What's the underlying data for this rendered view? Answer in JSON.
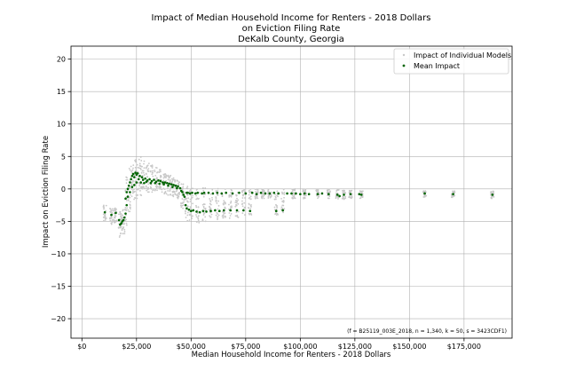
{
  "chart_data": {
    "type": "scatter",
    "title": [
      "Impact of Median Household Income for Renters - 2018 Dollars",
      "on Eviction Filing Rate",
      "DeKalb County, Georgia"
    ],
    "xlabel": "Median Household Income for Renters - 2018 Dollars",
    "ylabel": "Impact on Eviction Filing Rate",
    "xlim": [
      -5000,
      197000
    ],
    "ylim": [
      -23,
      22
    ],
    "xticks": [
      0,
      25000,
      50000,
      75000,
      100000,
      125000,
      150000,
      175000
    ],
    "xtick_labels": [
      "$0",
      "$25,000",
      "$50,000",
      "$75,000",
      "$100,000",
      "$125,000",
      "$150,000",
      "$175,000"
    ],
    "yticks": [
      -20,
      -15,
      -10,
      -5,
      0,
      5,
      10,
      15,
      20
    ],
    "ytick_labels": [
      "−20",
      "−15",
      "−10",
      "−5",
      "0",
      "5",
      "10",
      "15",
      "20"
    ],
    "grid": true,
    "legend": {
      "placement": "top-right",
      "entries": [
        "Impact of Individual Models",
        "Mean Impact"
      ]
    },
    "annotation": "(f = B25119_003E_2018, n = 1,340, k = 50, s = 3423CDF1)",
    "series": [
      {
        "name": "Impact of Individual Models",
        "style": "individual",
        "color": "#c8c8c8",
        "bands": [
          {
            "x": 10500,
            "lo": -5.0,
            "hi": -2.5
          },
          {
            "x": 13500,
            "lo": -5.5,
            "hi": -3.0
          },
          {
            "x": 15500,
            "lo": -5.2,
            "hi": -2.8
          },
          {
            "x": 17500,
            "lo": -7.5,
            "hi": -3.5
          },
          {
            "x": 19000,
            "lo": -7.0,
            "hi": -3.0
          },
          {
            "x": 20500,
            "lo": -6.0,
            "hi": 2.0
          },
          {
            "x": 22000,
            "lo": -3.5,
            "hi": 3.5
          },
          {
            "x": 23500,
            "lo": -2.0,
            "hi": 4.0
          },
          {
            "x": 25000,
            "lo": -1.5,
            "hi": 4.5
          },
          {
            "x": 26500,
            "lo": -1.0,
            "hi": 5.0
          },
          {
            "x": 28000,
            "lo": -0.5,
            "hi": 4.5
          },
          {
            "x": 30000,
            "lo": -0.5,
            "hi": 4.0
          },
          {
            "x": 32000,
            "lo": -0.5,
            "hi": 3.8
          },
          {
            "x": 34000,
            "lo": -0.3,
            "hi": 3.5
          },
          {
            "x": 36000,
            "lo": -0.5,
            "hi": 3.0
          },
          {
            "x": 38000,
            "lo": -0.8,
            "hi": 2.5
          },
          {
            "x": 40000,
            "lo": -1.0,
            "hi": 2.2
          },
          {
            "x": 42000,
            "lo": -1.2,
            "hi": 2.0
          },
          {
            "x": 44000,
            "lo": -1.5,
            "hi": 1.8
          },
          {
            "x": 46000,
            "lo": -3.0,
            "hi": 1.0
          },
          {
            "x": 48000,
            "lo": -5.0,
            "hi": 0.5
          },
          {
            "x": 50000,
            "lo": -5.0,
            "hi": 0.3
          },
          {
            "x": 53000,
            "lo": -5.2,
            "hi": 0.2
          },
          {
            "x": 56000,
            "lo": -5.0,
            "hi": 0.2
          },
          {
            "x": 59000,
            "lo": -5.0,
            "hi": 0.2
          },
          {
            "x": 62000,
            "lo": -4.8,
            "hi": 0.1
          },
          {
            "x": 65000,
            "lo": -4.5,
            "hi": 0.1
          },
          {
            "x": 68000,
            "lo": -4.5,
            "hi": 0.0
          },
          {
            "x": 71000,
            "lo": -4.5,
            "hi": 0.0
          },
          {
            "x": 74000,
            "lo": -4.0,
            "hi": 0.0
          },
          {
            "x": 77000,
            "lo": -4.2,
            "hi": 0.0
          },
          {
            "x": 80000,
            "lo": -1.5,
            "hi": 0.0
          },
          {
            "x": 83000,
            "lo": -1.5,
            "hi": 0.0
          },
          {
            "x": 86000,
            "lo": -1.4,
            "hi": 0.0
          },
          {
            "x": 89000,
            "lo": -4.0,
            "hi": 0.0
          },
          {
            "x": 92000,
            "lo": -4.0,
            "hi": 0.0
          },
          {
            "x": 97000,
            "lo": -1.5,
            "hi": 0.0
          },
          {
            "x": 102000,
            "lo": -1.5,
            "hi": 0.0
          },
          {
            "x": 108000,
            "lo": -1.5,
            "hi": -0.1
          },
          {
            "x": 113000,
            "lo": -1.5,
            "hi": -0.1
          },
          {
            "x": 117000,
            "lo": -1.6,
            "hi": -0.1
          },
          {
            "x": 120000,
            "lo": -1.6,
            "hi": -0.2
          },
          {
            "x": 123000,
            "lo": -1.5,
            "hi": -0.2
          },
          {
            "x": 128000,
            "lo": -1.5,
            "hi": -0.2
          },
          {
            "x": 157000,
            "lo": -1.3,
            "hi": -0.3
          },
          {
            "x": 170000,
            "lo": -1.3,
            "hi": -0.3
          },
          {
            "x": 188000,
            "lo": -1.5,
            "hi": -0.3
          }
        ]
      },
      {
        "name": "Mean Impact",
        "style": "mean",
        "color": "#006400",
        "points": [
          [
            10500,
            -3.6
          ],
          [
            13500,
            -4.0
          ],
          [
            15500,
            -3.7
          ],
          [
            17000,
            -4.8
          ],
          [
            17500,
            -5.5
          ],
          [
            18000,
            -5.3
          ],
          [
            18500,
            -5.0
          ],
          [
            19000,
            -4.8
          ],
          [
            19500,
            -4.4
          ],
          [
            20000,
            -3.8
          ],
          [
            20000,
            -1.5
          ],
          [
            20500,
            -2.5
          ],
          [
            20500,
            -0.5
          ],
          [
            21000,
            0.0
          ],
          [
            21000,
            -1.2
          ],
          [
            21500,
            0.5
          ],
          [
            22000,
            1.0
          ],
          [
            22000,
            -0.5
          ],
          [
            22500,
            1.5
          ],
          [
            23000,
            2.0
          ],
          [
            23000,
            0.3
          ],
          [
            23500,
            2.3
          ],
          [
            24000,
            1.8
          ],
          [
            24000,
            0.6
          ],
          [
            24500,
            2.5
          ],
          [
            25000,
            2.2
          ],
          [
            25000,
            1.0
          ],
          [
            25500,
            2.4
          ],
          [
            26000,
            1.5
          ],
          [
            26500,
            2.0
          ],
          [
            27000,
            1.0
          ],
          [
            27500,
            1.8
          ],
          [
            28000,
            1.4
          ],
          [
            28500,
            0.9
          ],
          [
            29000,
            1.6
          ],
          [
            29500,
            1.1
          ],
          [
            30000,
            1.3
          ],
          [
            31000,
            1.5
          ],
          [
            31500,
            0.9
          ],
          [
            32000,
            1.2
          ],
          [
            33000,
            1.4
          ],
          [
            33500,
            0.9
          ],
          [
            34000,
            1.1
          ],
          [
            35000,
            1.3
          ],
          [
            35500,
            0.8
          ],
          [
            36000,
            1.2
          ],
          [
            37000,
            1.0
          ],
          [
            37500,
            0.7
          ],
          [
            38000,
            1.0
          ],
          [
            39000,
            0.9
          ],
          [
            39500,
            0.5
          ],
          [
            40000,
            0.8
          ],
          [
            41000,
            0.7
          ],
          [
            41500,
            0.3
          ],
          [
            42000,
            0.6
          ],
          [
            43000,
            0.5
          ],
          [
            43500,
            0.1
          ],
          [
            44000,
            0.4
          ],
          [
            45000,
            0.1
          ],
          [
            45500,
            -0.3
          ],
          [
            46000,
            -0.5
          ],
          [
            46500,
            -0.9
          ],
          [
            47000,
            -1.2
          ],
          [
            47500,
            -2.5
          ],
          [
            48000,
            -0.6
          ],
          [
            48000,
            -3.0
          ],
          [
            48500,
            -0.6
          ],
          [
            49000,
            -3.2
          ],
          [
            49500,
            -0.7
          ],
          [
            50000,
            -3.4
          ],
          [
            50500,
            -0.6
          ],
          [
            51000,
            -3.3
          ],
          [
            52000,
            -0.7
          ],
          [
            52500,
            -3.5
          ],
          [
            53000,
            -0.6
          ],
          [
            54000,
            -3.6
          ],
          [
            55000,
            -0.7
          ],
          [
            55500,
            -3.4
          ],
          [
            56000,
            -0.6
          ],
          [
            57000,
            -3.5
          ],
          [
            58000,
            -0.6
          ],
          [
            59000,
            -3.4
          ],
          [
            60000,
            -0.7
          ],
          [
            61000,
            -3.3
          ],
          [
            62000,
            -0.6
          ],
          [
            63000,
            -3.4
          ],
          [
            64000,
            -0.7
          ],
          [
            65000,
            -3.3
          ],
          [
            66000,
            -0.6
          ],
          [
            68000,
            -3.3
          ],
          [
            69000,
            -0.7
          ],
          [
            71000,
            -3.3
          ],
          [
            72000,
            -0.6
          ],
          [
            74000,
            -3.3
          ],
          [
            75000,
            -0.7
          ],
          [
            77000,
            -3.4
          ],
          [
            78000,
            -0.6
          ],
          [
            80000,
            -0.8
          ],
          [
            82000,
            -0.6
          ],
          [
            84000,
            -0.7
          ],
          [
            86000,
            -0.7
          ],
          [
            88000,
            -0.6
          ],
          [
            89000,
            -3.4
          ],
          [
            90000,
            -0.7
          ],
          [
            92000,
            -3.3
          ],
          [
            94000,
            -0.7
          ],
          [
            96000,
            -0.7
          ],
          [
            98000,
            -0.7
          ],
          [
            100000,
            -0.8
          ],
          [
            102000,
            -0.7
          ],
          [
            104000,
            -0.8
          ],
          [
            108000,
            -0.8
          ],
          [
            110000,
            -0.7
          ],
          [
            113000,
            -0.8
          ],
          [
            117000,
            -0.9
          ],
          [
            118000,
            -1.1
          ],
          [
            120000,
            -0.9
          ],
          [
            123000,
            -0.8
          ],
          [
            127000,
            -0.8
          ],
          [
            128000,
            -0.9
          ],
          [
            157000,
            -0.7
          ],
          [
            170000,
            -0.8
          ],
          [
            188000,
            -0.9
          ]
        ]
      }
    ]
  }
}
